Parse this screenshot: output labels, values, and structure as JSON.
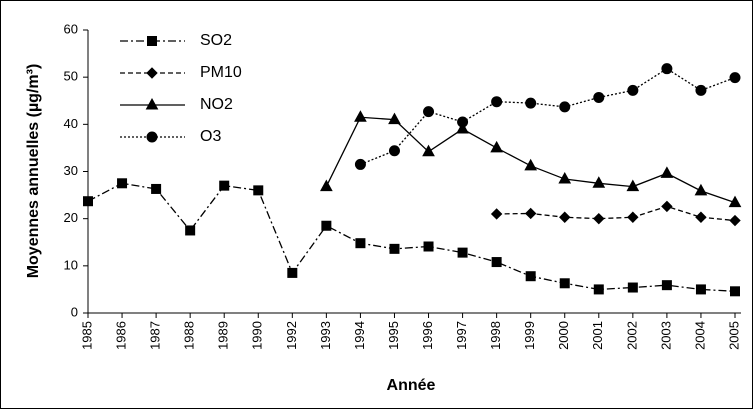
{
  "chart_data": {
    "type": "line",
    "x_label": "Année",
    "y_label": "Moyennes annuelles (µg/m³)",
    "categories": [
      "1985",
      "1986",
      "1987",
      "1988",
      "1989",
      "1990",
      "1992",
      "1993",
      "1994",
      "1995",
      "1996",
      "1997",
      "1998",
      "1999",
      "2000",
      "2001",
      "2002",
      "2003",
      "2004",
      "2005"
    ],
    "series": [
      {
        "name": "SO2",
        "color": "#000000",
        "line_style": "dashdot",
        "marker": "square",
        "values": [
          23.7,
          27.5,
          26.3,
          17.5,
          27,
          26,
          8.5,
          18.5,
          14.8,
          13.6,
          14.1,
          12.8,
          10.8,
          7.8,
          6.3,
          5,
          5.4,
          5.9,
          5,
          4.6
        ]
      },
      {
        "name": "PM10",
        "color": "#000000",
        "line_style": "dashed",
        "marker": "diamond",
        "values": [
          null,
          null,
          null,
          null,
          null,
          null,
          null,
          null,
          null,
          null,
          null,
          null,
          21,
          21.1,
          20.3,
          20,
          20.3,
          22.6,
          20.3,
          19.6
        ]
      },
      {
        "name": "NO2",
        "color": "#000000",
        "line_style": "solid",
        "marker": "triangle",
        "values": [
          null,
          null,
          null,
          null,
          null,
          null,
          null,
          26.8,
          41.5,
          41,
          34.2,
          39,
          35,
          31.2,
          28.4,
          27.5,
          26.8,
          29.6,
          25.9,
          23.4
        ]
      },
      {
        "name": "O3",
        "color": "#000000",
        "line_style": "dotted",
        "marker": "circle",
        "values": [
          null,
          null,
          null,
          null,
          null,
          null,
          null,
          null,
          31.5,
          34.4,
          42.7,
          40.5,
          44.8,
          44.5,
          43.7,
          45.7,
          47.2,
          51.8,
          47.2,
          49.9
        ]
      }
    ],
    "ylim": [
      0,
      60
    ],
    "yticks": [
      0,
      10,
      20,
      30,
      40,
      50,
      60
    ],
    "grid": false,
    "legend": "upper left"
  }
}
